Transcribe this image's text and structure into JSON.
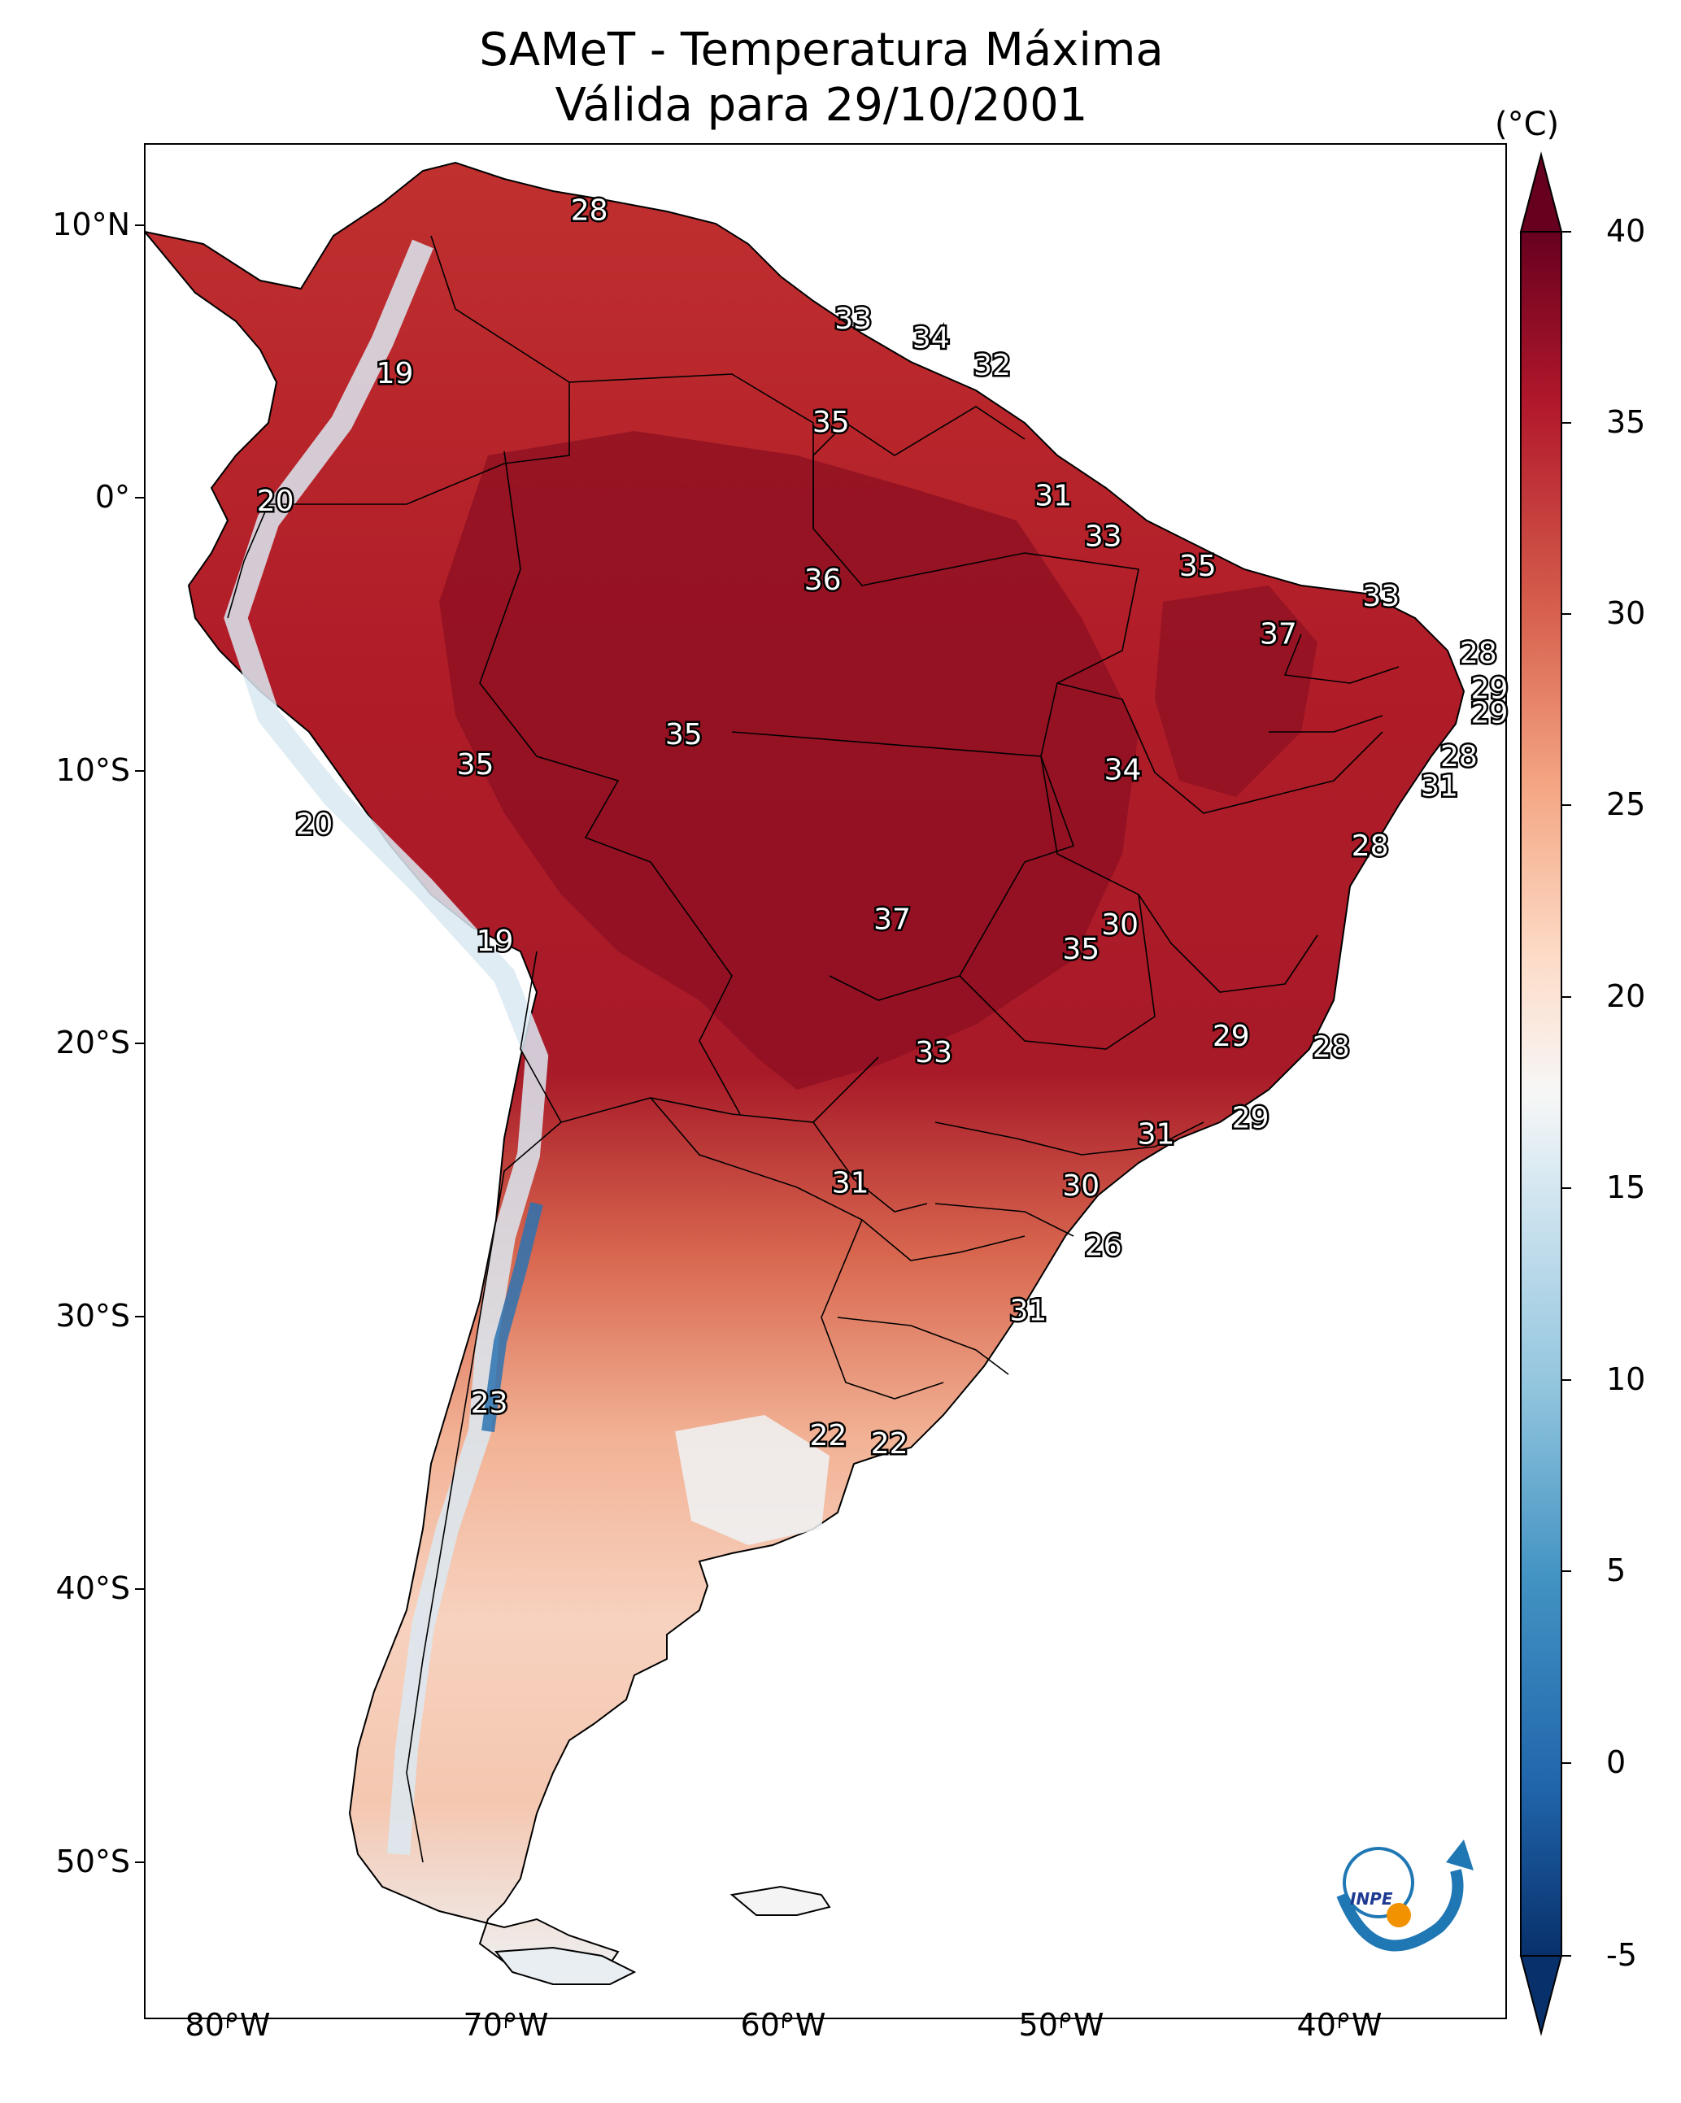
{
  "title": "SAMeT - Temperatura Máxima",
  "subtitle": "Válida para 29/10/2001",
  "lat_ticks": [
    "10°N",
    "0°",
    "10°S",
    "20°S",
    "30°S",
    "40°S",
    "50°S"
  ],
  "lon_ticks": [
    "80°W",
    "70°W",
    "60°W",
    "50°W",
    "40°W"
  ],
  "colorbar": {
    "unit": "(°C)",
    "ticks": [
      "40",
      "35",
      "30",
      "25",
      "20",
      "15",
      "10",
      "5",
      "0",
      "-5"
    ],
    "min": -5,
    "max": 40,
    "colors": {
      "low": "#08306b",
      "mid": "#f7f7f7",
      "high": "#67001f"
    }
  },
  "logo": {
    "text": "INPE"
  },
  "chart_data": {
    "type": "map",
    "title": "SAMeT - Temperatura Máxima",
    "subtitle": "Válida para 29/10/2001",
    "units": "°C",
    "lon_range": [
      -83,
      -34
    ],
    "lat_range": [
      -56,
      13
    ],
    "station_values": [
      {
        "label": "28",
        "lon": -67,
        "lat": 10.5
      },
      {
        "label": "19",
        "lon": -74,
        "lat": 4.5
      },
      {
        "label": "33",
        "lon": -57.5,
        "lat": 6.5
      },
      {
        "label": "34",
        "lon": -54.7,
        "lat": 5.8
      },
      {
        "label": "32",
        "lon": -52.5,
        "lat": 4.8
      },
      {
        "label": "35",
        "lon": -58.3,
        "lat": 2.7
      },
      {
        "label": "20",
        "lon": -78.3,
        "lat": -0.2
      },
      {
        "label": "31",
        "lon": -50.3,
        "lat": 0.0
      },
      {
        "label": "33",
        "lon": -48.5,
        "lat": -1.5
      },
      {
        "label": "36",
        "lon": -58.6,
        "lat": -3.1
      },
      {
        "label": "35",
        "lon": -45.1,
        "lat": -2.6
      },
      {
        "label": "33",
        "lon": -38.5,
        "lat": -3.7
      },
      {
        "label": "37",
        "lon": -42.2,
        "lat": -5.1
      },
      {
        "label": "28",
        "lon": -35.0,
        "lat": -5.8
      },
      {
        "label": "29",
        "lon": -34.6,
        "lat": -7.1
      },
      {
        "label": "29",
        "lon": -34.6,
        "lat": -8.0
      },
      {
        "label": "35",
        "lon": -63.6,
        "lat": -8.8
      },
      {
        "label": "35",
        "lon": -71.1,
        "lat": -9.9
      },
      {
        "label": "34",
        "lon": -47.8,
        "lat": -10.1
      },
      {
        "label": "28",
        "lon": -35.7,
        "lat": -9.6
      },
      {
        "label": "31",
        "lon": -36.4,
        "lat": -10.7
      },
      {
        "label": "20",
        "lon": -76.9,
        "lat": -12.1
      },
      {
        "label": "28",
        "lon": -38.9,
        "lat": -12.9
      },
      {
        "label": "37",
        "lon": -56.1,
        "lat": -15.6
      },
      {
        "label": "30",
        "lon": -47.9,
        "lat": -15.8
      },
      {
        "label": "35",
        "lon": -49.3,
        "lat": -16.7
      },
      {
        "label": "19",
        "lon": -70.4,
        "lat": -16.4
      },
      {
        "label": "29",
        "lon": -43.9,
        "lat": -19.9
      },
      {
        "label": "28",
        "lon": -40.3,
        "lat": -20.3
      },
      {
        "label": "33",
        "lon": -54.6,
        "lat": -20.5
      },
      {
        "label": "29",
        "lon": -43.2,
        "lat": -22.9
      },
      {
        "label": "31",
        "lon": -46.6,
        "lat": -23.5
      },
      {
        "label": "31",
        "lon": -57.6,
        "lat": -25.3
      },
      {
        "label": "30",
        "lon": -49.3,
        "lat": -25.4
      },
      {
        "label": "26",
        "lon": -48.5,
        "lat": -27.6
      },
      {
        "label": "31",
        "lon": -51.2,
        "lat": -30.0
      },
      {
        "label": "23",
        "lon": -70.6,
        "lat": -33.4
      },
      {
        "label": "22",
        "lon": -58.4,
        "lat": -34.6
      },
      {
        "label": "22",
        "lon": -56.2,
        "lat": -34.9
      }
    ]
  }
}
